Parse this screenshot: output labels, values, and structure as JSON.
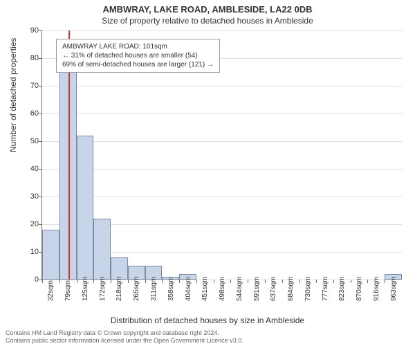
{
  "chart": {
    "type": "histogram",
    "title": "AMBWRAY, LAKE ROAD, AMBLESIDE, LA22 0DB",
    "subtitle": "Size of property relative to detached houses in Ambleside",
    "ylabel": "Number of detached properties",
    "xlabel": "Distribution of detached houses by size in Ambleside",
    "ylim": [
      0,
      90
    ],
    "ytick_step": 10,
    "yticks": [
      0,
      10,
      20,
      30,
      40,
      50,
      60,
      70,
      80,
      90
    ],
    "xticks": [
      "32sqm",
      "79sqm",
      "125sqm",
      "172sqm",
      "218sqm",
      "265sqm",
      "311sqm",
      "358sqm",
      "404sqm",
      "451sqm",
      "498sqm",
      "544sqm",
      "591sqm",
      "637sqm",
      "684sqm",
      "730sqm",
      "777sqm",
      "823sqm",
      "870sqm",
      "916sqm",
      "963sqm"
    ],
    "values": [
      18,
      75,
      52,
      22,
      8,
      5,
      5,
      1,
      2,
      0,
      0,
      0,
      0,
      0,
      0,
      0,
      0,
      0,
      0,
      0,
      2
    ],
    "bar_color": "#c8d4e8",
    "bar_border": "#7a8ca8",
    "background_color": "#ffffff",
    "grid_color": "#e0e0e0",
    "axis_color": "#666666",
    "marker_color": "#cc3333",
    "marker_position": 101,
    "x_range": [
      32,
      986
    ],
    "annotation": {
      "line1": "AMBWRAY LAKE ROAD: 101sqm",
      "line2": "← 31% of detached houses are smaller (54)",
      "line3": "69% of semi-detached houses are larger (121) →"
    },
    "footer_line1": "Contains HM Land Registry data © Crown copyright and database right 2024.",
    "footer_line2": "Contains public sector information licensed under the Open Government Licence v3.0."
  }
}
